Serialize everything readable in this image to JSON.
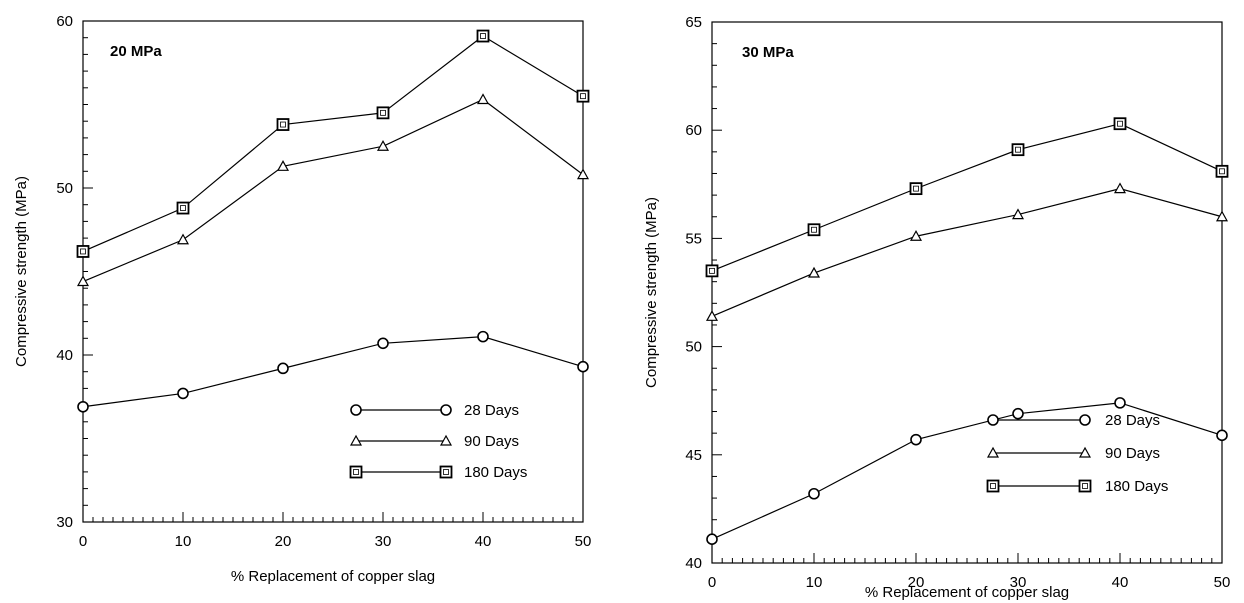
{
  "chart_data": [
    {
      "type": "line",
      "panel_label": "20 MPa",
      "xlabel": "% Replacement of copper slag",
      "ylabel": "Compressive strength (MPa)",
      "x": [
        0,
        10,
        20,
        30,
        40,
        50
      ],
      "x_ticks": [
        "0",
        "10",
        "20",
        "30",
        "40",
        "50"
      ],
      "y_ticks": [
        "30",
        "40",
        "50",
        "60"
      ],
      "xlim": [
        0,
        50
      ],
      "ylim": [
        30,
        60
      ],
      "legend_position": "bottom-right",
      "series": [
        {
          "name": "28 Days",
          "marker": "circle",
          "values": [
            36.9,
            37.7,
            39.2,
            40.7,
            41.1,
            39.3
          ]
        },
        {
          "name": "90 Days",
          "marker": "triangle",
          "values": [
            44.4,
            46.9,
            51.3,
            52.5,
            55.3,
            50.8
          ]
        },
        {
          "name": "180 Days",
          "marker": "square",
          "values": [
            46.2,
            48.8,
            53.8,
            54.5,
            59.1,
            55.5
          ]
        }
      ]
    },
    {
      "type": "line",
      "panel_label": "30 MPa",
      "xlabel": "% Replacement of copper slag",
      "ylabel": "Compressive strength (MPa)",
      "x": [
        0,
        10,
        20,
        30,
        40,
        50
      ],
      "x_ticks": [
        "0",
        "10",
        "20",
        "30",
        "40",
        "50"
      ],
      "y_ticks": [
        "40",
        "45",
        "50",
        "55",
        "60",
        "65"
      ],
      "xlim": [
        0,
        50
      ],
      "ylim": [
        40,
        65
      ],
      "legend_position": "bottom-right",
      "series": [
        {
          "name": "28 Days",
          "marker": "circle",
          "values": [
            41.1,
            43.2,
            45.7,
            46.9,
            47.4,
            45.9
          ]
        },
        {
          "name": "90 Days",
          "marker": "triangle",
          "values": [
            51.4,
            53.4,
            55.1,
            56.1,
            57.3,
            56.0
          ]
        },
        {
          "name": "180 Days",
          "marker": "square",
          "values": [
            53.5,
            55.4,
            57.3,
            59.1,
            60.3,
            58.1
          ]
        }
      ]
    }
  ]
}
